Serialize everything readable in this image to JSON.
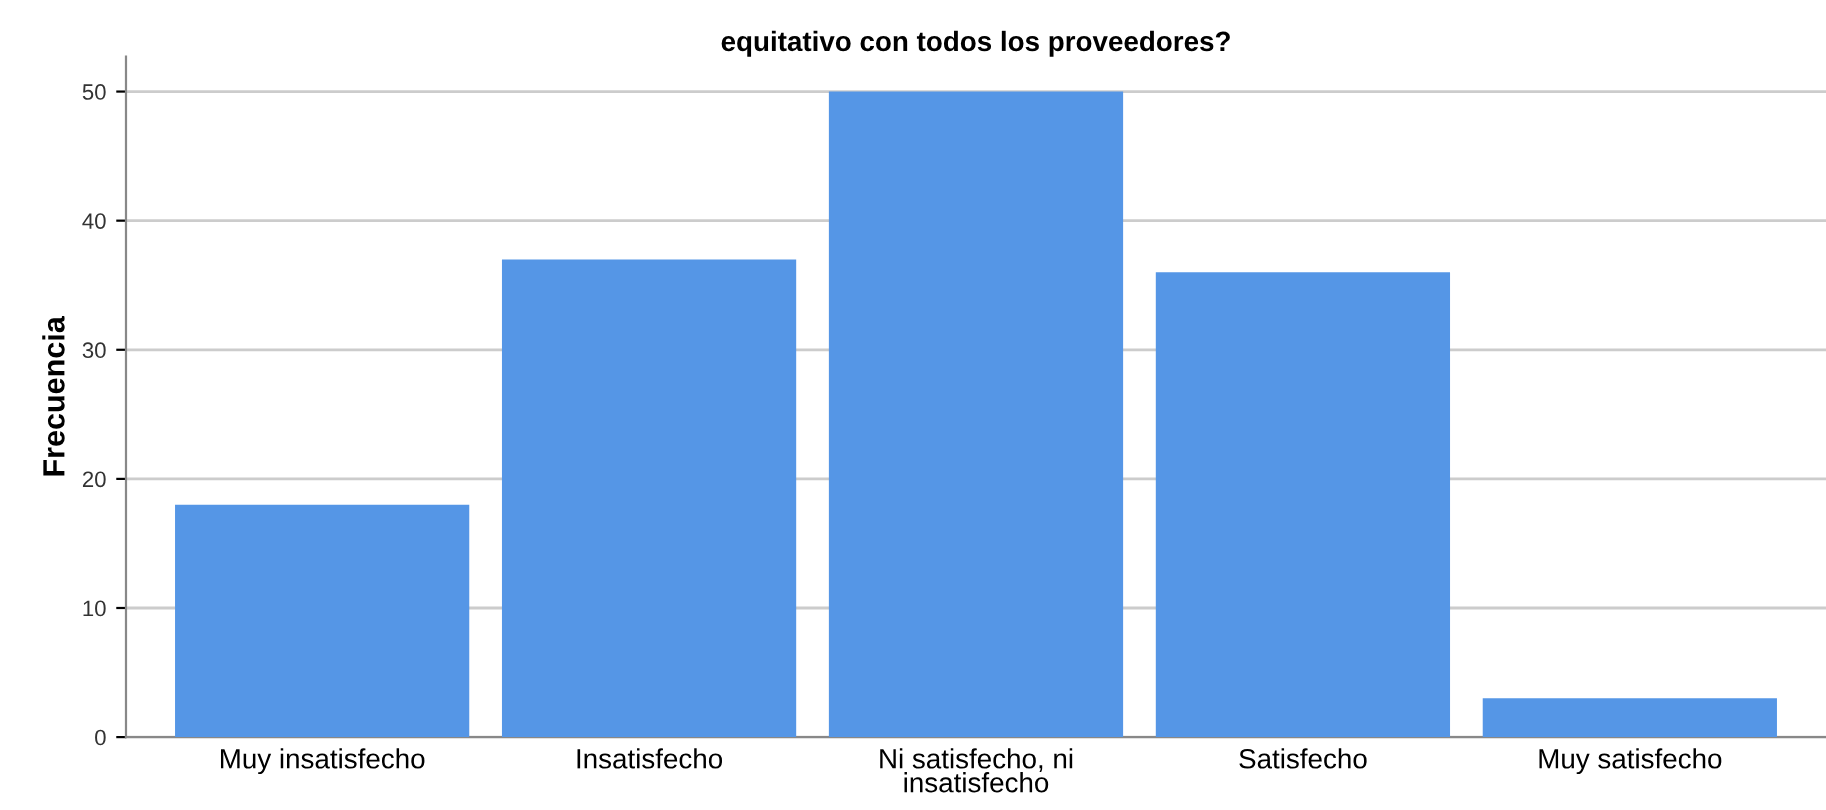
{
  "chart_data": {
    "type": "bar",
    "title": "equitativo con todos los proveedores?",
    "ylabel": "Frecuencia",
    "categories": [
      "Muy insatisfecho",
      "Insatisfecho",
      "Ni satisfecho, ni\ninsatisfecho",
      "Satisfecho",
      "Muy satisfecho"
    ],
    "values": [
      18,
      37,
      50,
      36,
      3
    ],
    "color": "#5596e6",
    "ylim": [
      0,
      52.7
    ],
    "yticks": [
      0,
      10,
      20,
      30,
      40,
      50
    ],
    "grid": "y"
  }
}
